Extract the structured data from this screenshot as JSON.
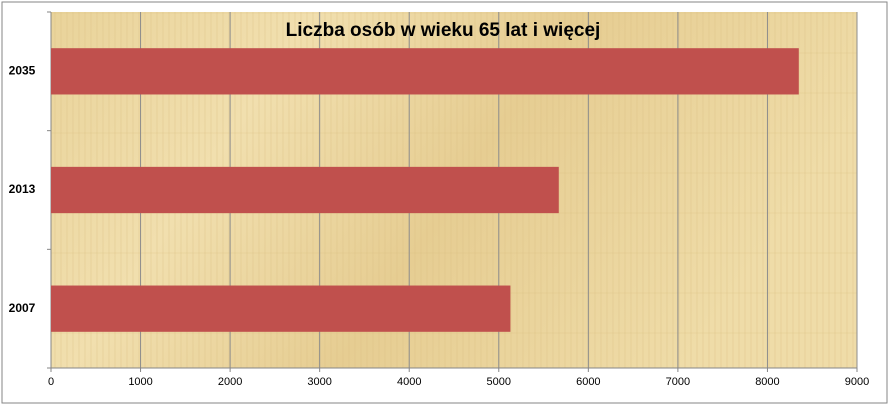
{
  "chart_data": {
    "type": "hbar",
    "title": "Liczba osób w wieku 65 lat i więcej",
    "categories": [
      "2007",
      "2013",
      "2035"
    ],
    "values": [
      5130,
      5670,
      8350
    ],
    "color": "#c0504d",
    "xlim": [
      0,
      9000
    ],
    "xticks": [
      0,
      1000,
      2000,
      3000,
      4000,
      5000,
      6000,
      7000,
      8000,
      9000
    ],
    "grid": true
  }
}
